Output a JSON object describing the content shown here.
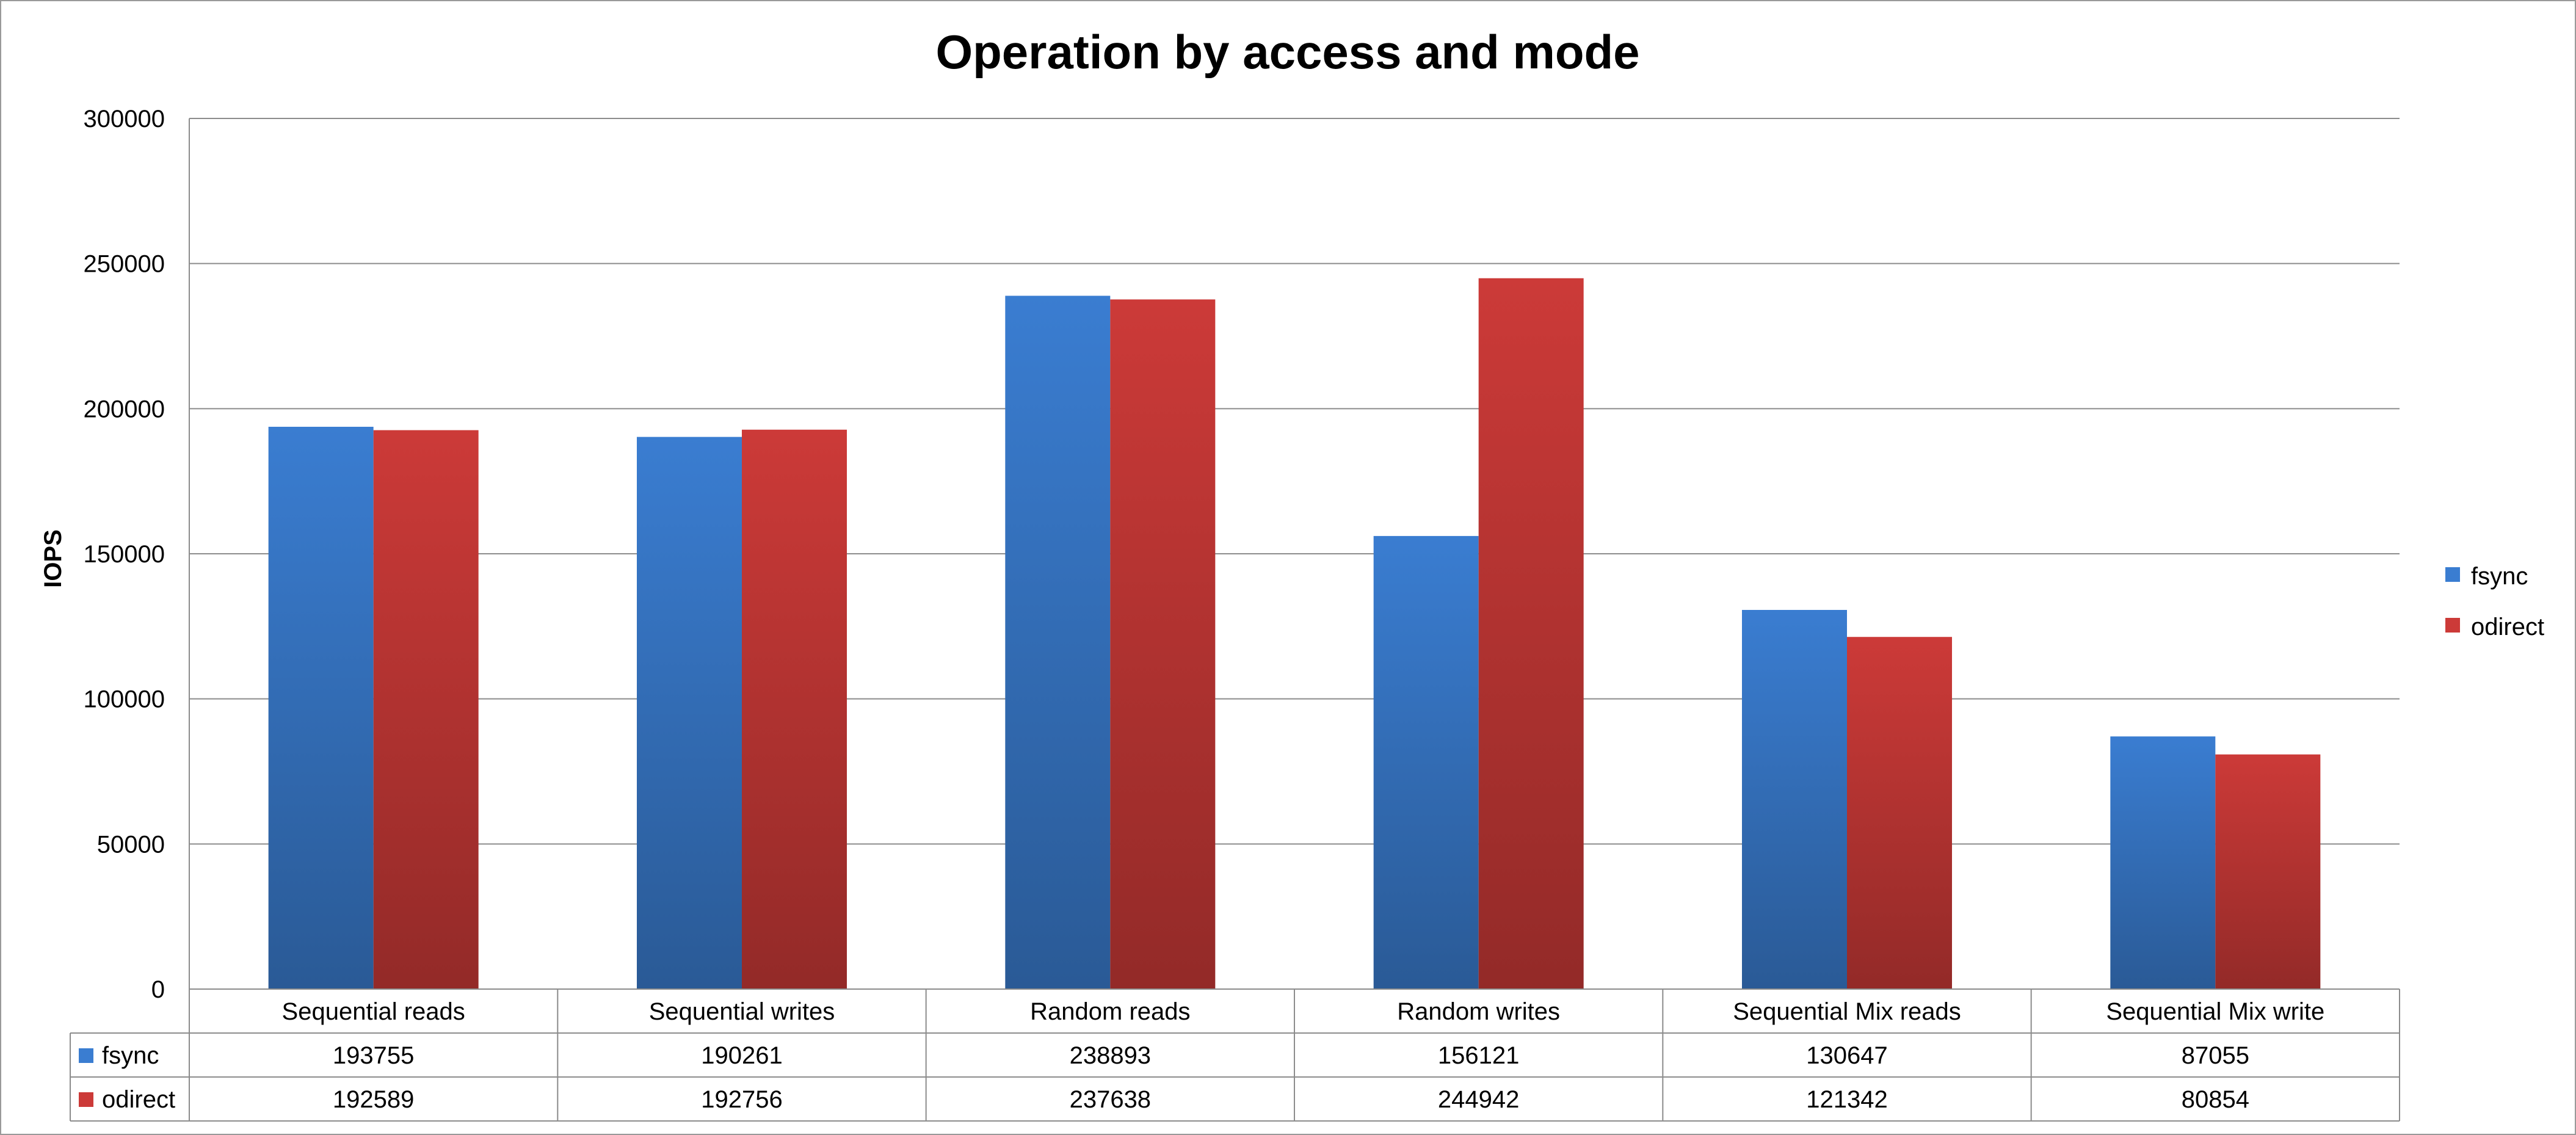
{
  "chart_data": {
    "type": "bar",
    "title": "Operation by access and mode",
    "xlabel": "",
    "ylabel": "IOPS",
    "ylim": [
      0,
      300000
    ],
    "yticks": [
      "0",
      "50000",
      "100000",
      "150000",
      "200000",
      "250000",
      "300000"
    ],
    "grid": true,
    "legend_position": "right",
    "categories": [
      "Sequential reads",
      "Sequential writes",
      "Random reads",
      "Random writes",
      "Sequential Mix reads",
      "Sequential Mix write"
    ],
    "series": [
      {
        "name": "fsync",
        "color": "#3a7dd1",
        "values": [
          193755,
          190261,
          238893,
          156121,
          130647,
          87055
        ]
      },
      {
        "name": "odirect",
        "color": "#cc3a38",
        "values": [
          192589,
          192756,
          237638,
          244942,
          121342,
          80854
        ]
      }
    ],
    "data_table": true
  }
}
